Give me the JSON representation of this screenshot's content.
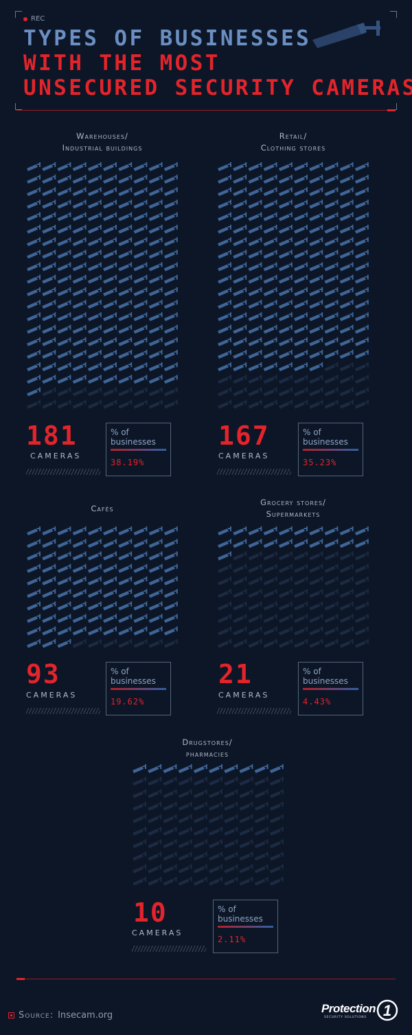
{
  "header": {
    "rec_label": "REC",
    "title_line1": "TYPES OF BUSINESSES",
    "title_line2": "WITH THE MOST",
    "title_line3": "UNSECURED SECURITY CAMERAS"
  },
  "colors": {
    "background": "#0c1627",
    "accent_red": "#e3242b",
    "camera_blue": "#3f6596",
    "camera_dim": "#1c2b42"
  },
  "chart_data": {
    "type": "pictograph",
    "categories": [
      "Warehouses/ Industrial buildings",
      "Retail/ Clothing stores",
      "Cafés",
      "Grocery stores/ Supermarkets",
      "Drugstores/ pharmacies"
    ],
    "series": [
      {
        "name": "cameras",
        "values": [
          181,
          167,
          93,
          21,
          10
        ]
      },
      {
        "name": "% of businesses",
        "values": [
          38.19,
          35.23,
          19.62,
          4.43,
          2.11
        ]
      }
    ],
    "items": [
      {
        "name_line1": "Warehouses/",
        "name_line2": "Industrial buildings",
        "cameras": 181,
        "cameras_text": "181",
        "grid_total": 200,
        "unit_label": "CAMERAS",
        "pct_label_line1": "% of",
        "pct_label_line2": "businesses",
        "pct_text": "38.19%"
      },
      {
        "name_line1": "Retail/",
        "name_line2": "Clothing stores",
        "cameras": 167,
        "cameras_text": "167",
        "grid_total": 200,
        "unit_label": "CAMERAS",
        "pct_label_line1": "% of",
        "pct_label_line2": "businesses",
        "pct_text": "35.23%"
      },
      {
        "name_line1": "",
        "name_line2": "Cafés",
        "cameras": 93,
        "cameras_text": "93",
        "grid_total": 100,
        "unit_label": "CAMERAS",
        "pct_label_line1": "% of",
        "pct_label_line2": "businesses",
        "pct_text": "19.62%"
      },
      {
        "name_line1": "Grocery stores/",
        "name_line2": "Supermarkets",
        "cameras": 21,
        "cameras_text": "21",
        "grid_total": 100,
        "unit_label": "CAMERAS",
        "pct_label_line1": "% of",
        "pct_label_line2": "businesses",
        "pct_text": "4.43%"
      },
      {
        "name_line1": "Drugstores/",
        "name_line2": "pharmacies",
        "cameras": 10,
        "cameras_text": "10",
        "grid_total": 100,
        "unit_label": "CAMERAS",
        "pct_label_line1": "% of",
        "pct_label_line2": "businesses",
        "pct_text": "2.11%"
      }
    ]
  },
  "footer": {
    "source_label": "Source:",
    "source_value": "Insecam.org",
    "logo_text": "Protection",
    "logo_number": "1",
    "logo_sub": "SECURITY SOLUTIONS"
  }
}
